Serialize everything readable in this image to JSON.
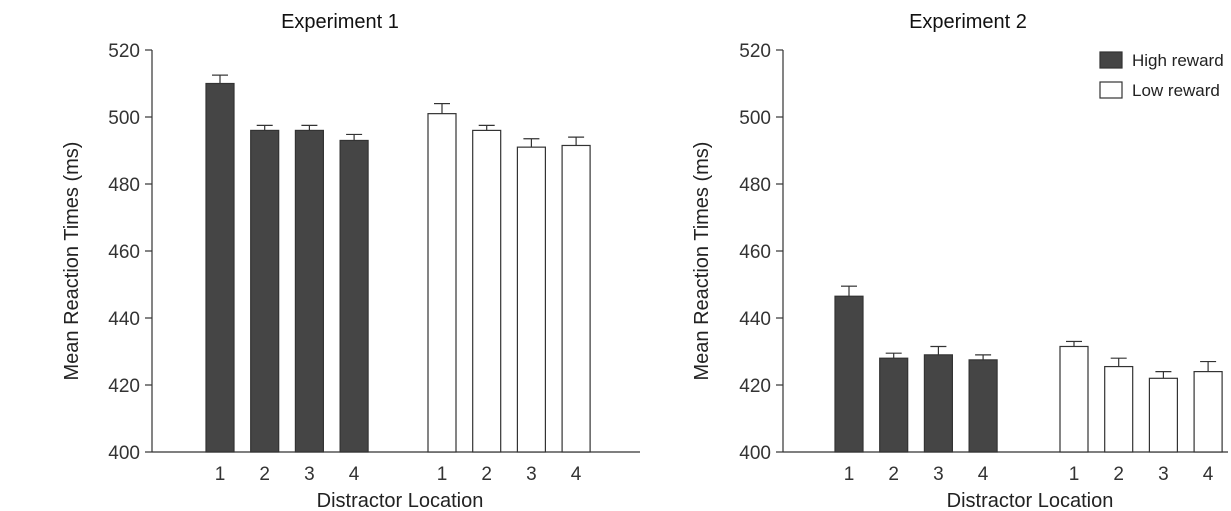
{
  "chart_data": [
    {
      "type": "bar",
      "title": "Experiment 1",
      "xlabel": "Distractor Location",
      "ylabel": "Mean Reaction Times (ms)",
      "ylim": [
        400,
        520
      ],
      "yticks": [
        400,
        420,
        440,
        460,
        480,
        500,
        520
      ],
      "categories": [
        "1",
        "2",
        "3",
        "4"
      ],
      "series": [
        {
          "name": "High reward",
          "color": "#454545",
          "values": [
            510,
            496,
            496,
            493
          ],
          "errors": [
            2.5,
            1.5,
            1.5,
            1.8
          ]
        },
        {
          "name": "Low reward",
          "color": "#ffffff",
          "values": [
            501,
            496,
            491,
            491.5
          ],
          "errors": [
            3,
            1.5,
            2.5,
            2.5
          ]
        }
      ],
      "grid": false
    },
    {
      "type": "bar",
      "title": "Experiment 2",
      "xlabel": "Distractor Location",
      "ylabel": "Mean Reaction Times (ms)",
      "ylim": [
        400,
        520
      ],
      "yticks": [
        400,
        420,
        440,
        460,
        480,
        500,
        520
      ],
      "categories": [
        "1",
        "2",
        "3",
        "4"
      ],
      "series": [
        {
          "name": "High reward",
          "color": "#454545",
          "values": [
            446.5,
            428,
            429,
            427.5
          ],
          "errors": [
            3,
            1.5,
            2.5,
            1.5
          ]
        },
        {
          "name": "Low reward",
          "color": "#ffffff",
          "values": [
            431.5,
            425.5,
            422,
            424
          ],
          "errors": [
            1.5,
            2.5,
            2,
            3
          ]
        }
      ],
      "grid": false,
      "legend": "top-right"
    }
  ]
}
